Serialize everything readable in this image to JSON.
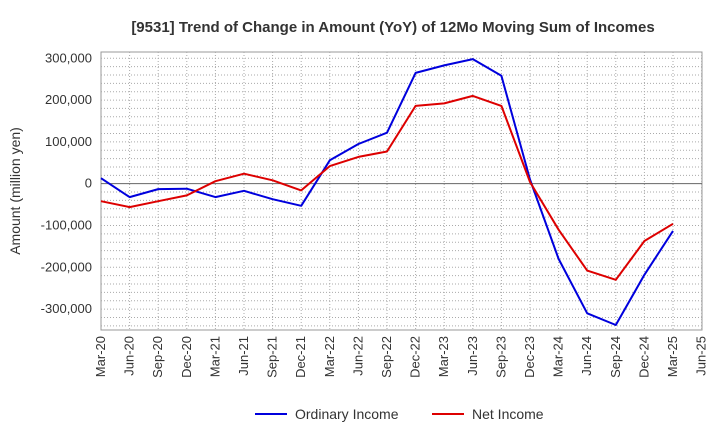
{
  "chart_data": {
    "type": "line",
    "title": "[9531]  Trend of Change in Amount (YoY) of 12Mo Moving Sum of Incomes",
    "ylabel": "Amount (million yen)",
    "xlabel": "",
    "ylim": [
      -350000,
      315000
    ],
    "yticks": [
      300000,
      200000,
      100000,
      0,
      -100000,
      -200000,
      -300000
    ],
    "ytick_labels": [
      "300,000",
      "200,000",
      "100,000",
      "0",
      "-100,000",
      "-200,000",
      "-300,000"
    ],
    "categories": [
      "Mar-20",
      "Jun-20",
      "Sep-20",
      "Dec-20",
      "Mar-21",
      "Jun-21",
      "Sep-21",
      "Dec-21",
      "Mar-22",
      "Jun-22",
      "Sep-22",
      "Dec-22",
      "Mar-23",
      "Jun-23",
      "Sep-23",
      "Dec-23",
      "Mar-24",
      "Jun-24",
      "Sep-24",
      "Dec-24",
      "Mar-25",
      "Jun-25"
    ],
    "grid": true,
    "legend_position": "bottom",
    "series": [
      {
        "name": "Ordinary Income",
        "color": "#0000dd",
        "values": [
          13000,
          -32000,
          -13000,
          -12000,
          -32000,
          -17000,
          -37000,
          -53000,
          56000,
          95000,
          122000,
          265000,
          283000,
          298000,
          258000,
          10000,
          -180000,
          -310000,
          -338000,
          -218000,
          -113000,
          null
        ]
      },
      {
        "name": "Net Income",
        "color": "#dd0000",
        "values": [
          -42000,
          -56000,
          -42000,
          -28000,
          6000,
          24000,
          8000,
          -16000,
          42000,
          64000,
          77000,
          186000,
          192000,
          210000,
          186000,
          4000,
          -110000,
          -208000,
          -230000,
          -137000,
          -96000,
          null
        ]
      }
    ]
  }
}
